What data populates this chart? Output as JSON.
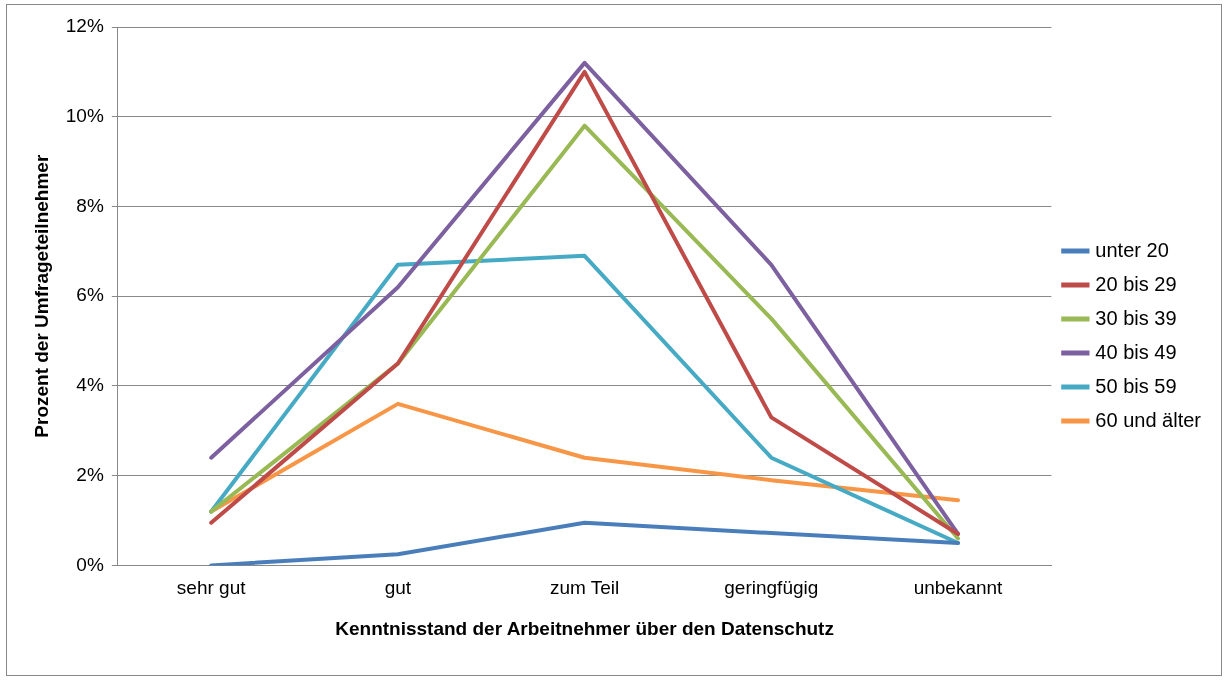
{
  "chart_data": {
    "type": "line",
    "xlabel": "Kenntnisstand der Arbeitnehmer über den Datenschutz",
    "ylabel": "Prozent der Umfrageteilnehmer",
    "categories": [
      "sehr gut",
      "gut",
      "zum Teil",
      "geringfügig",
      "unbekannt"
    ],
    "series": [
      {
        "name": "unter 20",
        "color": "#4a7ebb",
        "values": [
          0,
          0.25,
          0.95,
          0.72,
          0.5
        ]
      },
      {
        "name": "20 bis 29",
        "color": "#be4b48",
        "values": [
          0.95,
          4.5,
          11.0,
          3.3,
          0.7
        ]
      },
      {
        "name": "30 bis 39",
        "color": "#98b954",
        "values": [
          1.2,
          4.5,
          9.8,
          5.5,
          0.6
        ]
      },
      {
        "name": "40 bis 49",
        "color": "#7d60a0",
        "values": [
          2.4,
          6.2,
          11.2,
          6.7,
          0.7
        ]
      },
      {
        "name": "50 bis 59",
        "color": "#46aac5",
        "values": [
          1.2,
          6.7,
          6.9,
          2.4,
          0.5
        ]
      },
      {
        "name": "60 und älter",
        "color": "#f79646",
        "values": [
          1.2,
          3.6,
          2.4,
          1.9,
          1.45
        ]
      }
    ],
    "ylim": [
      0,
      12
    ],
    "yticks": [
      {
        "value": 0,
        "label": "0%"
      },
      {
        "value": 2,
        "label": "2%"
      },
      {
        "value": 4,
        "label": "4%"
      },
      {
        "value": 6,
        "label": "6%"
      },
      {
        "value": 8,
        "label": "8%"
      },
      {
        "value": 10,
        "label": "10%"
      },
      {
        "value": 12,
        "label": "12%"
      }
    ],
    "grid": "y",
    "legend": "right",
    "marker": "none",
    "line_style": "solid"
  }
}
